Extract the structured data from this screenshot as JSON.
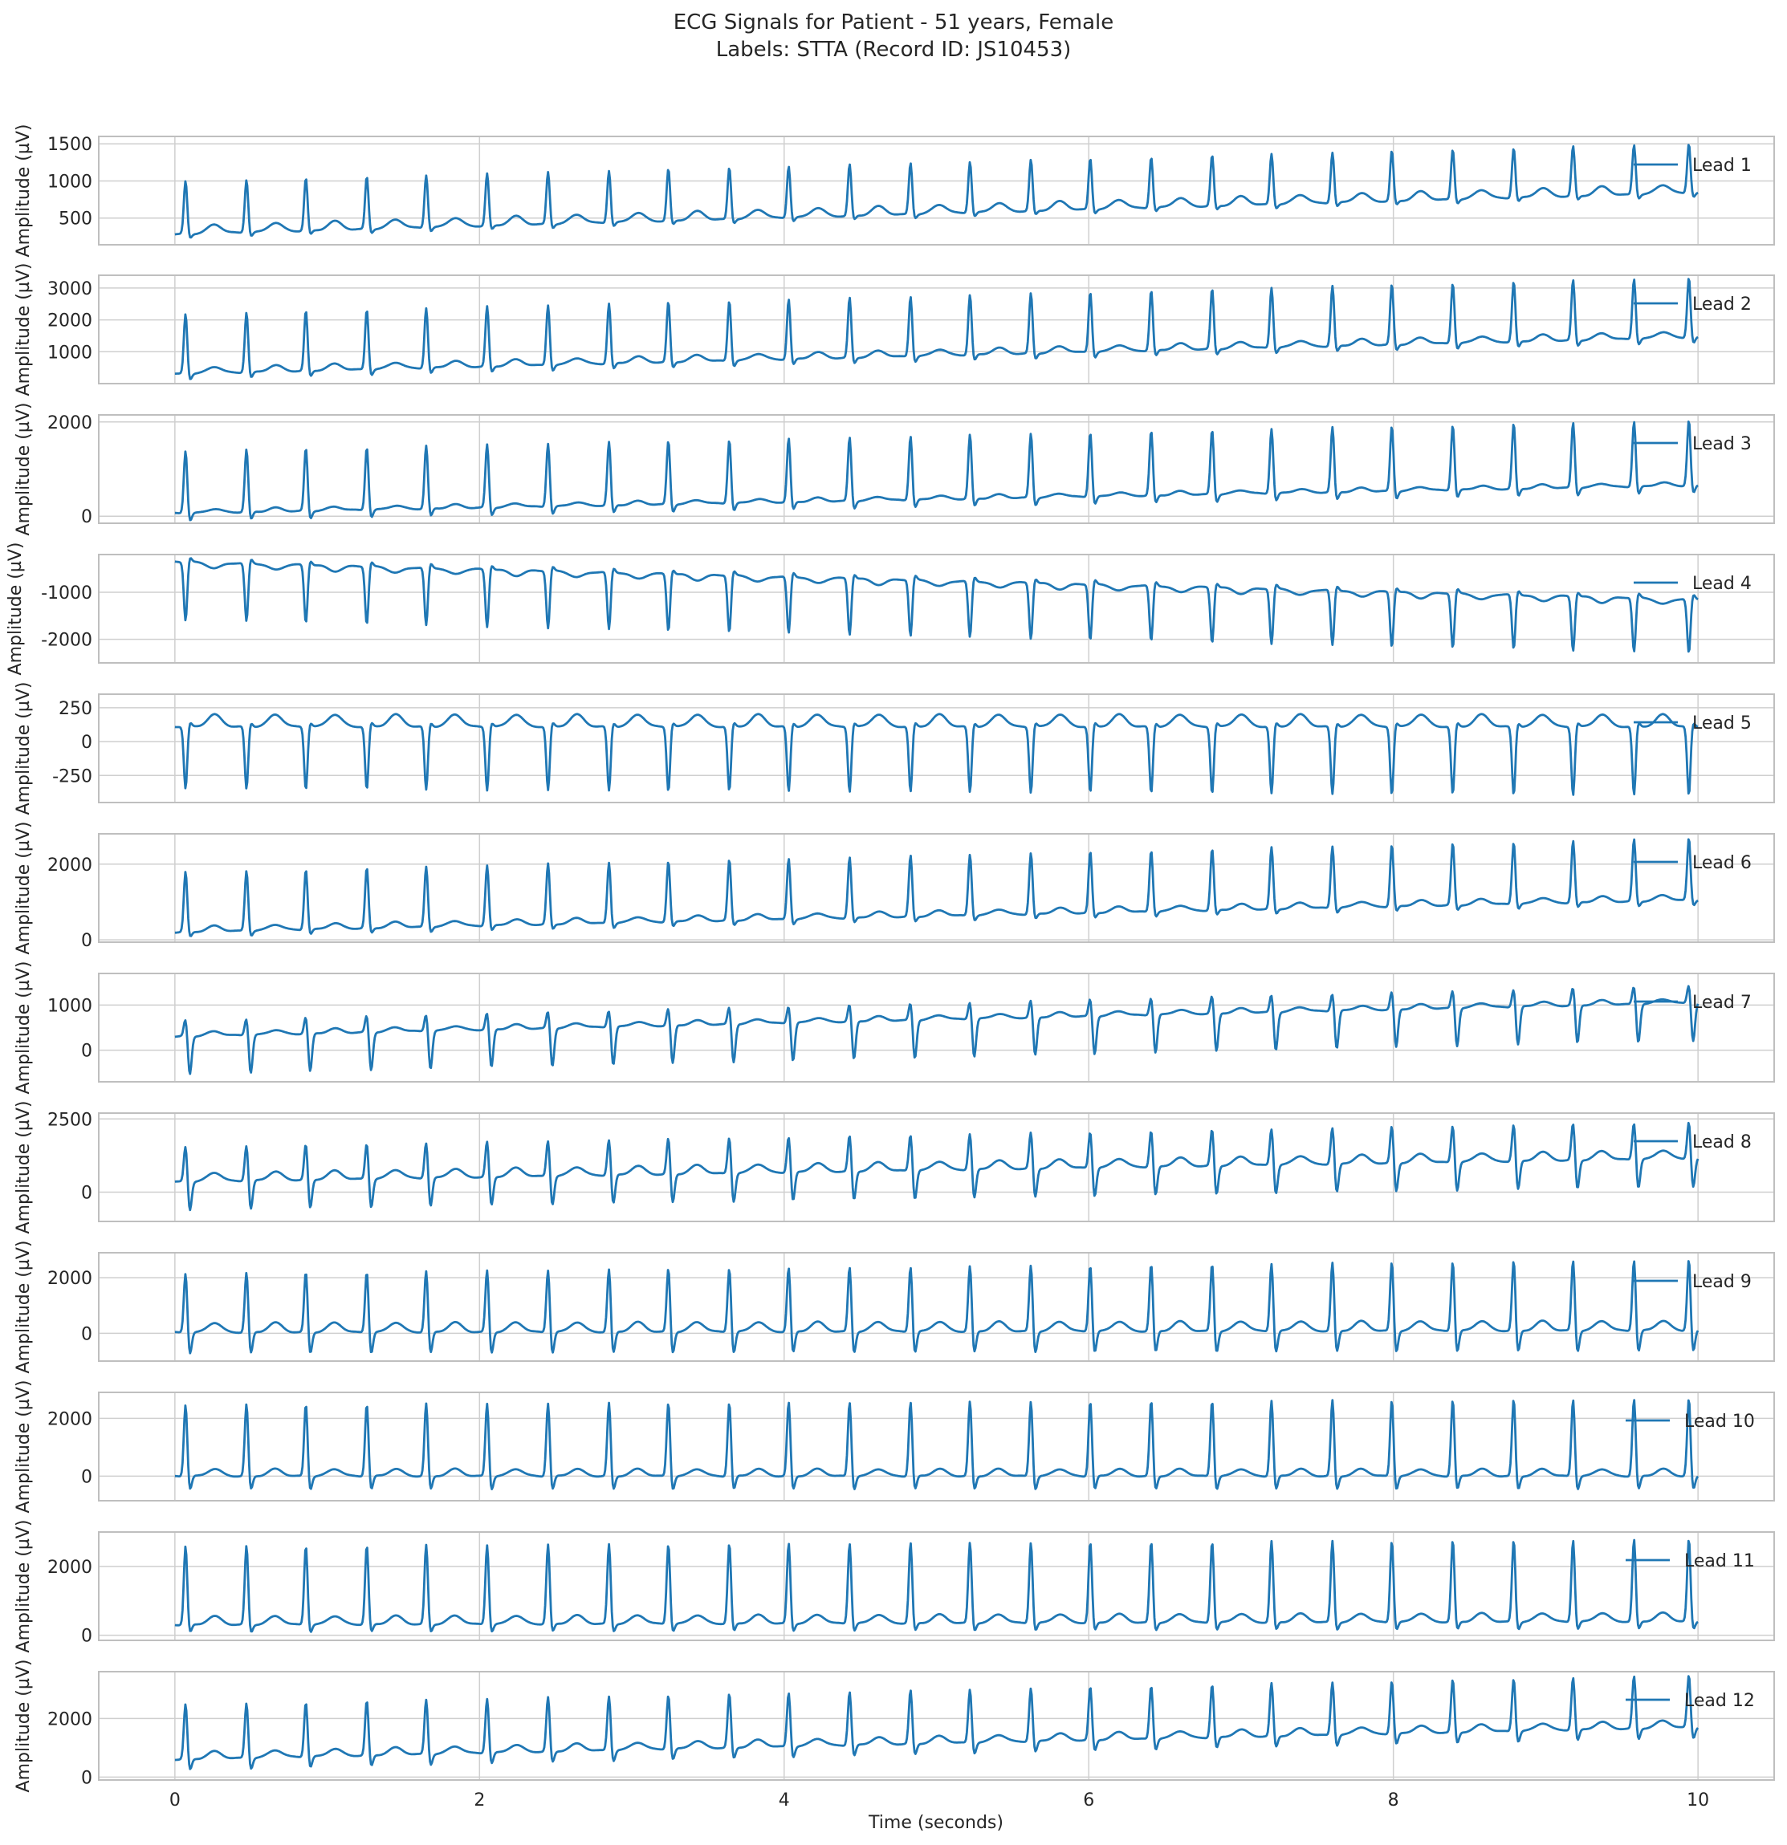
{
  "figure": {
    "title_line1": "ECG Signals for Patient - 51 years, Female",
    "title_line2": "Labels: STTA (Record ID: JS10453)",
    "xlabel": "Time (seconds)",
    "ylabel": "Amplitude (µV)",
    "line_color": "#1f77b4",
    "grid_color": "#cfcfcf",
    "frame_color": "#bfbfbf"
  },
  "chart_data": {
    "type": "line",
    "x_range": [
      -0.5,
      10.5
    ],
    "x_ticks": [
      0,
      2,
      4,
      6,
      8,
      10
    ],
    "duration_s": 10,
    "beat_times_s": [
      0.07,
      0.47,
      0.86,
      1.26,
      1.65,
      2.05,
      2.45,
      2.85,
      3.24,
      3.64,
      4.03,
      4.43,
      4.83,
      5.22,
      5.62,
      6.01,
      6.41,
      6.81,
      7.2,
      7.6,
      7.99,
      8.39,
      8.79,
      9.18,
      9.58,
      9.94
    ],
    "legend_position": "right",
    "grid": true,
    "series": [
      {
        "name": "Lead 1",
        "ylim": [
          140,
          1600
        ],
        "yticks": [
          500,
          1000,
          1500
        ],
        "base_start": 280,
        "base_end": 840,
        "peak": 680,
        "s_wave": -60,
        "t_wave": 120,
        "first_peak": 1000,
        "last_peak": 1510
      },
      {
        "name": "Lead 2",
        "ylim": [
          0,
          3400
        ],
        "yticks": [
          1000,
          2000,
          3000
        ],
        "base_start": 300,
        "base_end": 1450,
        "peak": 1850,
        "s_wave": -200,
        "t_wave": 200,
        "first_peak": 2200,
        "last_peak": 3350
      },
      {
        "name": "Lead 3",
        "ylim": [
          -150,
          2150
        ],
        "yticks": [
          0,
          2000
        ],
        "base_start": 60,
        "base_end": 650,
        "peak": 1350,
        "s_wave": -180,
        "t_wave": 80,
        "first_peak": 1400,
        "last_peak": 2050
      },
      {
        "name": "Lead 4",
        "ylim": [
          -2500,
          -200
        ],
        "yticks": [
          -2000,
          -1000
        ],
        "base_start": -350,
        "base_end": -1150,
        "peak": -1200,
        "s_wave": 100,
        "t_wave": -120,
        "first_peak": -1600,
        "last_peak": -2300
      },
      {
        "name": "Lead 5",
        "ylim": [
          -450,
          350
        ],
        "yticks": [
          -250,
          0,
          250
        ],
        "base_start": 110,
        "base_end": 110,
        "peak": -420,
        "s_wave": 30,
        "t_wave": 90,
        "first_peak": -350,
        "last_peak": -400
      },
      {
        "name": "Lead 6",
        "ylim": [
          -60,
          2800
        ],
        "yticks": [
          0,
          2000
        ],
        "base_start": 200,
        "base_end": 1050,
        "peak": 1650,
        "s_wave": -150,
        "t_wave": 150,
        "first_peak": 1800,
        "last_peak": 2700
      },
      {
        "name": "Lead 7",
        "ylim": [
          -700,
          1700
        ],
        "yticks": [
          0,
          1000
        ],
        "base_start": 300,
        "base_end": 1050,
        "peak": 450,
        "s_wave": -850,
        "t_wave": 100,
        "first_peak": 700,
        "last_peak": 1470
      },
      {
        "name": "Lead 8",
        "ylim": [
          -1000,
          2700
        ],
        "yticks": [
          0,
          2500
        ],
        "base_start": 350,
        "base_end": 1150,
        "peak": 1300,
        "s_wave": -1000,
        "t_wave": 300,
        "first_peak": 1600,
        "last_peak": 2450
      },
      {
        "name": "Lead 9",
        "ylim": [
          -1000,
          2900
        ],
        "yticks": [
          0,
          2000
        ],
        "base_start": 30,
        "base_end": 100,
        "peak": 2300,
        "s_wave": -800,
        "t_wave": 350,
        "first_peak": 2200,
        "last_peak": 2700
      },
      {
        "name": "Lead 10",
        "ylim": [
          -850,
          2900
        ],
        "yticks": [
          0,
          2000
        ],
        "base_start": 0,
        "base_end": 0,
        "peak": 2450,
        "s_wave": -500,
        "t_wave": 250,
        "first_peak": 2500,
        "last_peak": 2700
      },
      {
        "name": "Lead 11",
        "ylim": [
          -150,
          3000
        ],
        "yticks": [
          0,
          2000
        ],
        "base_start": 300,
        "base_end": 400,
        "peak": 2400,
        "s_wave": -250,
        "t_wave": 250,
        "first_peak": 2600,
        "last_peak": 2800
      },
      {
        "name": "Lead 12",
        "ylim": [
          -100,
          3600
        ],
        "yticks": [
          0,
          2000
        ],
        "base_start": 600,
        "base_end": 1700,
        "peak": 1800,
        "s_wave": -400,
        "t_wave": 250,
        "first_peak": 2500,
        "last_peak": 3500
      }
    ]
  }
}
